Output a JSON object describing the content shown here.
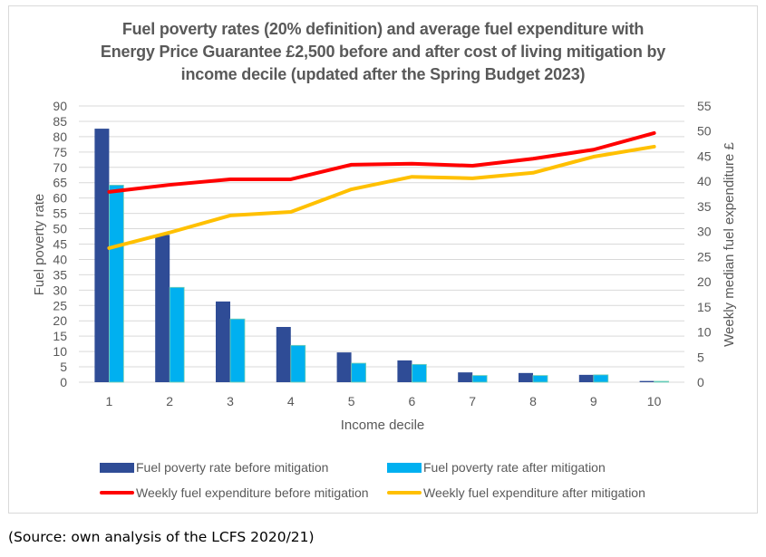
{
  "chart_data": {
    "type": "bar",
    "title_lines": [
      "Fuel poverty rates (20% definition) and average fuel expenditure with",
      "Energy Price Guarantee £2,500 before and after cost of living mitigation by",
      "income decile (updated after the Spring Budget 2023)"
    ],
    "xlabel": "Income decile",
    "ylabel": "Fuel poverty rate",
    "y2label": "Weekly median  fuel expenditure £",
    "categories": [
      "1",
      "2",
      "3",
      "4",
      "5",
      "6",
      "7",
      "8",
      "9",
      "10"
    ],
    "ylim": [
      0,
      90
    ],
    "y_ticks": [
      0,
      5,
      10,
      15,
      20,
      25,
      30,
      35,
      40,
      45,
      50,
      55,
      60,
      65,
      70,
      75,
      80,
      85,
      90
    ],
    "y2lim": [
      0,
      55
    ],
    "y2_ticks": [
      0,
      5,
      10,
      15,
      20,
      25,
      30,
      35,
      40,
      45,
      50,
      55
    ],
    "grid": true,
    "legend_position": "bottom",
    "series": [
      {
        "name": "Fuel poverty rate before mitigation",
        "type": "bar",
        "axis": "left",
        "color": "#2F4C96",
        "values": [
          82.6,
          48.0,
          26.3,
          18.0,
          9.7,
          7.1,
          3.2,
          3.0,
          2.4,
          0.4
        ]
      },
      {
        "name": "Fuel poverty rate after mitigation",
        "type": "bar",
        "axis": "left",
        "color": "#00B0F0",
        "values": [
          64.2,
          30.9,
          20.6,
          12.0,
          6.2,
          5.8,
          2.2,
          2.2,
          2.4,
          0.3
        ]
      },
      {
        "name": "Weekly fuel expenditure before mitigation",
        "type": "line",
        "axis": "right",
        "color": "#FF0000",
        "values": [
          37.9,
          39.3,
          40.4,
          40.4,
          43.3,
          43.5,
          43.1,
          44.5,
          46.3,
          49.6
        ]
      },
      {
        "name": "Weekly fuel expenditure after mitigation",
        "type": "line",
        "axis": "right",
        "color": "#FFC000",
        "values": [
          26.7,
          29.8,
          33.2,
          33.9,
          38.4,
          40.9,
          40.6,
          41.7,
          44.9,
          46.9
        ]
      }
    ]
  },
  "source_note": "(Source: own analysis of the LCFS 2020/21)"
}
